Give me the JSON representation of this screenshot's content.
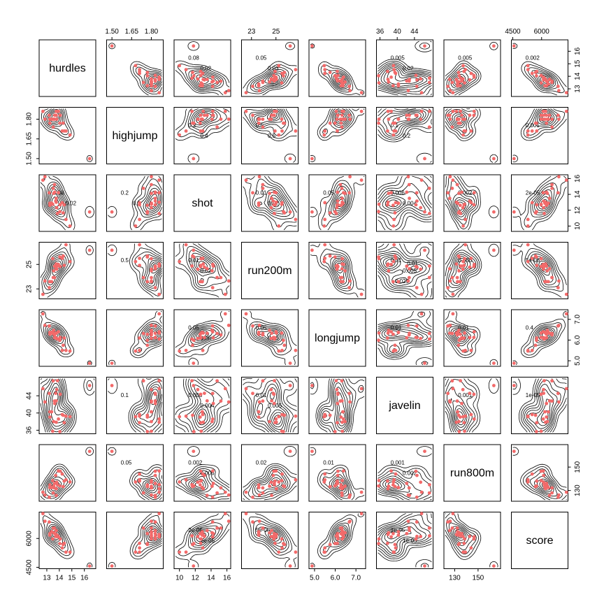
{
  "chart_data": {
    "type": "scatter",
    "variables": [
      "hurdles",
      "highjump",
      "shot",
      "run200m",
      "longjump",
      "javelin",
      "run800m",
      "score"
    ],
    "ranges": {
      "hurdles": [
        12.5,
        16.8
      ],
      "highjump": [
        1.47,
        1.88
      ],
      "shot": [
        9.5,
        16.3
      ],
      "run200m": [
        22.3,
        26.7
      ],
      "longjump": [
        4.8,
        7.4
      ],
      "javelin": [
        35.5,
        48.0
      ],
      "run800m": [
        122,
        168
      ],
      "score": [
        4500,
        7300
      ]
    },
    "ticks": {
      "hurdles": {
        "values": [
          13,
          14,
          15,
          16
        ],
        "labels": [
          "13",
          "14",
          "15",
          "16"
        ]
      },
      "highjump": {
        "values": [
          1.5,
          1.65,
          1.8
        ],
        "labels": [
          "1.50",
          "1.65",
          "1.80"
        ]
      },
      "shot": {
        "values": [
          10,
          12,
          14,
          16
        ],
        "labels": [
          "10",
          "12",
          "14",
          "16"
        ]
      },
      "run200m": {
        "values": [
          23,
          25
        ],
        "labels": [
          "23",
          "25"
        ]
      },
      "longjump": {
        "values": [
          5.0,
          6.0,
          7.0
        ],
        "labels": [
          "5.0",
          "6.0",
          "7.0"
        ]
      },
      "javelin": {
        "values": [
          36,
          40,
          44
        ],
        "labels": [
          "36",
          "40",
          "44"
        ]
      },
      "run800m": {
        "values": [
          130,
          150
        ],
        "labels": [
          "130",
          "150"
        ]
      },
      "score": {
        "values": [
          4500,
          6000
        ],
        "labels": [
          "4500",
          "6000"
        ]
      }
    },
    "ticks_right": {
      "hurdles": {
        "values": [
          13,
          14,
          15,
          16
        ],
        "labels": [
          "13",
          "14",
          "15",
          "16"
        ]
      },
      "shot": {
        "values": [
          10,
          12,
          14,
          16
        ],
        "labels": [
          "10",
          "12",
          "14",
          "16"
        ]
      },
      "longjump": {
        "values": [
          5.0,
          6.0,
          7.0
        ],
        "labels": [
          "5.0",
          "6.0",
          "7.0"
        ]
      },
      "run800m": {
        "values": [
          130,
          150
        ],
        "labels": [
          "130",
          "150"
        ]
      }
    },
    "ticks_left": {
      "highjump": {
        "values": [
          1.5,
          1.65,
          1.8
        ],
        "labels": [
          "1.50",
          "1.65",
          "1.80"
        ]
      },
      "run200m": {
        "values": [
          23,
          25
        ],
        "labels": [
          "23",
          "25"
        ]
      },
      "javelin": {
        "values": [
          36,
          40,
          44
        ],
        "labels": [
          "36",
          "40",
          "44"
        ]
      },
      "score": {
        "values": [
          4500,
          6000
        ],
        "labels": [
          "4500",
          "6000"
        ]
      }
    },
    "athletes": [
      {
        "hurdles": 12.69,
        "highjump": 1.86,
        "shot": 15.8,
        "run200m": 22.56,
        "longjump": 7.27,
        "javelin": 45.66,
        "run800m": 128.51,
        "score": 7291
      },
      {
        "hurdles": 12.85,
        "highjump": 1.8,
        "shot": 16.23,
        "run200m": 23.65,
        "longjump": 6.71,
        "javelin": 42.56,
        "run800m": 126.12,
        "score": 6897
      },
      {
        "hurdles": 13.2,
        "highjump": 1.83,
        "shot": 14.2,
        "run200m": 23.1,
        "longjump": 6.68,
        "javelin": 44.54,
        "run800m": 124.2,
        "score": 6858
      },
      {
        "hurdles": 13.61,
        "highjump": 1.8,
        "shot": 15.23,
        "run200m": 23.92,
        "longjump": 6.25,
        "javelin": 42.78,
        "run800m": 132.24,
        "score": 6540
      },
      {
        "hurdles": 13.51,
        "highjump": 1.74,
        "shot": 14.76,
        "run200m": 23.93,
        "longjump": 6.32,
        "javelin": 47.46,
        "run800m": 127.9,
        "score": 6540
      },
      {
        "hurdles": 13.75,
        "highjump": 1.83,
        "shot": 13.5,
        "run200m": 24.65,
        "longjump": 6.33,
        "javelin": 42.82,
        "run800m": 125.79,
        "score": 6411
      },
      {
        "hurdles": 13.38,
        "highjump": 1.8,
        "shot": 12.88,
        "run200m": 23.59,
        "longjump": 6.37,
        "javelin": 40.28,
        "run800m": 132.54,
        "score": 6351
      },
      {
        "hurdles": 13.55,
        "highjump": 1.8,
        "shot": 14.13,
        "run200m": 24.48,
        "longjump": 6.47,
        "javelin": 38.0,
        "run800m": 133.65,
        "score": 6297
      },
      {
        "hurdles": 13.63,
        "highjump": 1.83,
        "shot": 14.28,
        "run200m": 24.86,
        "longjump": 6.11,
        "javelin": 42.2,
        "run800m": 136.05,
        "score": 6252
      },
      {
        "hurdles": 13.25,
        "highjump": 1.77,
        "shot": 12.62,
        "run200m": 23.59,
        "longjump": 6.28,
        "javelin": 39.06,
        "run800m": 134.74,
        "score": 6252
      },
      {
        "hurdles": 13.75,
        "highjump": 1.86,
        "shot": 13.01,
        "run200m": 25.03,
        "longjump": 6.34,
        "javelin": 37.86,
        "run800m": 131.49,
        "score": 6205
      },
      {
        "hurdles": 13.24,
        "highjump": 1.8,
        "shot": 12.88,
        "run200m": 23.59,
        "longjump": 6.37,
        "javelin": 40.28,
        "run800m": 132.54,
        "score": 6171
      },
      {
        "hurdles": 13.85,
        "highjump": 1.86,
        "shot": 11.58,
        "run200m": 24.87,
        "longjump": 6.05,
        "javelin": 47.5,
        "run800m": 134.93,
        "score": 6137
      },
      {
        "hurdles": 13.71,
        "highjump": 1.83,
        "shot": 13.16,
        "run200m": 24.78,
        "longjump": 6.12,
        "javelin": 44.58,
        "run800m": 142.82,
        "score": 6109
      },
      {
        "hurdles": 13.79,
        "highjump": 1.8,
        "shot": 12.32,
        "run200m": 24.61,
        "longjump": 6.08,
        "javelin": 45.44,
        "run800m": 137.06,
        "score": 6101
      },
      {
        "hurdles": 13.93,
        "highjump": 1.86,
        "shot": 14.21,
        "run200m": 25.0,
        "longjump": 6.4,
        "javelin": 38.6,
        "run800m": 146.67,
        "score": 6087
      },
      {
        "hurdles": 13.47,
        "highjump": 1.8,
        "shot": 12.75,
        "run200m": 25.47,
        "longjump": 6.34,
        "javelin": 35.76,
        "run800m": 138.48,
        "score": 5975
      },
      {
        "hurdles": 14.07,
        "highjump": 1.83,
        "shot": 12.69,
        "run200m": 24.83,
        "longjump": 6.13,
        "javelin": 44.34,
        "run800m": 146.43,
        "score": 5972
      },
      {
        "hurdles": 14.39,
        "highjump": 1.71,
        "shot": 12.68,
        "run200m": 24.92,
        "longjump": 6.1,
        "javelin": 37.76,
        "run800m": 138.02,
        "score": 5746
      },
      {
        "hurdles": 14.04,
        "highjump": 1.77,
        "shot": 11.81,
        "run200m": 25.61,
        "longjump": 5.99,
        "javelin": 35.68,
        "run800m": 133.9,
        "score": 5734
      },
      {
        "hurdles": 14.31,
        "highjump": 1.77,
        "shot": 11.66,
        "run200m": 25.69,
        "longjump": 5.75,
        "javelin": 39.48,
        "run800m": 133.35,
        "score": 5686
      },
      {
        "hurdles": 14.23,
        "highjump": 1.71,
        "shot": 12.95,
        "run200m": 25.5,
        "longjump": 5.5,
        "javelin": 39.64,
        "run800m": 144.02,
        "score": 5508
      },
      {
        "hurdles": 14.85,
        "highjump": 1.68,
        "shot": 10.0,
        "run200m": 25.23,
        "longjump": 5.47,
        "javelin": 39.14,
        "run800m": 137.3,
        "score": 5290
      },
      {
        "hurdles": 14.53,
        "highjump": 1.71,
        "shot": 10.83,
        "run200m": 26.61,
        "longjump": 5.5,
        "javelin": 39.26,
        "run800m": 139.17,
        "score": 5289
      },
      {
        "hurdles": 16.42,
        "highjump": 1.5,
        "shot": 11.78,
        "run200m": 26.16,
        "longjump": 4.88,
        "javelin": 46.38,
        "run800m": 163.43,
        "score": 4566
      }
    ],
    "contour_labels": [
      {
        "row": 0,
        "col": 2,
        "text": "0.08"
      },
      {
        "row": 0,
        "col": 2,
        "text": "0.02"
      },
      {
        "row": 0,
        "col": 3,
        "text": "0.05"
      },
      {
        "row": 0,
        "col": 3,
        "text": "0.03"
      },
      {
        "row": 0,
        "col": 5,
        "text": "0.005"
      },
      {
        "row": 0,
        "col": 5,
        "text": "0.02"
      },
      {
        "row": 0,
        "col": 6,
        "text": "0.005"
      },
      {
        "row": 0,
        "col": 7,
        "text": "0.002"
      },
      {
        "row": 1,
        "col": 2,
        "text": "0.2"
      },
      {
        "row": 1,
        "col": 2,
        "text": "0.4"
      },
      {
        "row": 1,
        "col": 3,
        "text": "0.5"
      },
      {
        "row": 1,
        "col": 3,
        "text": "0.5"
      },
      {
        "row": 1,
        "col": 5,
        "text": "0.1"
      },
      {
        "row": 1,
        "col": 5,
        "text": "0.2"
      },
      {
        "row": 1,
        "col": 7,
        "text": "0.001"
      },
      {
        "row": 2,
        "col": 0,
        "text": "0.06"
      },
      {
        "row": 2,
        "col": 0,
        "text": "0.02"
      },
      {
        "row": 2,
        "col": 1,
        "text": "0.2"
      },
      {
        "row": 2,
        "col": 1,
        "text": "0.2"
      },
      {
        "row": 2,
        "col": 3,
        "text": "0.01"
      },
      {
        "row": 2,
        "col": 3,
        "text": "0.02"
      },
      {
        "row": 2,
        "col": 4,
        "text": "0.05"
      },
      {
        "row": 2,
        "col": 5,
        "text": "0.006"
      },
      {
        "row": 2,
        "col": 5,
        "text": "0.004"
      },
      {
        "row": 2,
        "col": 6,
        "text": "0.002"
      },
      {
        "row": 2,
        "col": 7,
        "text": "2e-05"
      },
      {
        "row": 3,
        "col": 1,
        "text": "0.5"
      },
      {
        "row": 3,
        "col": 2,
        "text": "0.01"
      },
      {
        "row": 3,
        "col": 2,
        "text": "0.02"
      },
      {
        "row": 3,
        "col": 5,
        "text": "0.01"
      },
      {
        "row": 3,
        "col": 5,
        "text": "0.005"
      },
      {
        "row": 3,
        "col": 5,
        "text": "0.025"
      },
      {
        "row": 3,
        "col": 5,
        "text": "0.01"
      },
      {
        "row": 3,
        "col": 6,
        "text": "0.006"
      },
      {
        "row": 3,
        "col": 7,
        "text": "5e-05"
      },
      {
        "row": 4,
        "col": 2,
        "text": "0.05"
      },
      {
        "row": 4,
        "col": 2,
        "text": "0.05"
      },
      {
        "row": 4,
        "col": 3,
        "text": "0.05"
      },
      {
        "row": 4,
        "col": 3,
        "text": "0.05"
      },
      {
        "row": 4,
        "col": 5,
        "text": "0.01"
      },
      {
        "row": 4,
        "col": 6,
        "text": "0.01"
      },
      {
        "row": 4,
        "col": 7,
        "text": "0.4"
      },
      {
        "row": 5,
        "col": 1,
        "text": "0.1"
      },
      {
        "row": 5,
        "col": 2,
        "text": "0.008"
      },
      {
        "row": 5,
        "col": 2,
        "text": "0.004"
      },
      {
        "row": 5,
        "col": 3,
        "text": "0.01"
      },
      {
        "row": 5,
        "col": 3,
        "text": "0.005"
      },
      {
        "row": 5,
        "col": 6,
        "text": "0.001"
      },
      {
        "row": 5,
        "col": 7,
        "text": "1e-05"
      },
      {
        "row": 6,
        "col": 1,
        "text": "0.05"
      },
      {
        "row": 6,
        "col": 2,
        "text": "0.002"
      },
      {
        "row": 6,
        "col": 2,
        "text": "0.006"
      },
      {
        "row": 6,
        "col": 3,
        "text": "0.02"
      },
      {
        "row": 6,
        "col": 4,
        "text": "0.01"
      },
      {
        "row": 6,
        "col": 5,
        "text": "0.001"
      },
      {
        "row": 6,
        "col": 5,
        "text": "0.002"
      },
      {
        "row": 7,
        "col": 2,
        "text": "2e-05"
      },
      {
        "row": 7,
        "col": 2,
        "text": "2e-05"
      },
      {
        "row": 7,
        "col": 3,
        "text": "5e-05"
      },
      {
        "row": 7,
        "col": 5,
        "text": "1e-05"
      },
      {
        "row": 7,
        "col": 5,
        "text": "1e-05"
      }
    ],
    "colors": {
      "points": "#f26a6a",
      "contours": "#000000",
      "frame": "#000000",
      "background": "#ffffff"
    },
    "grid": false,
    "legend": "none"
  }
}
